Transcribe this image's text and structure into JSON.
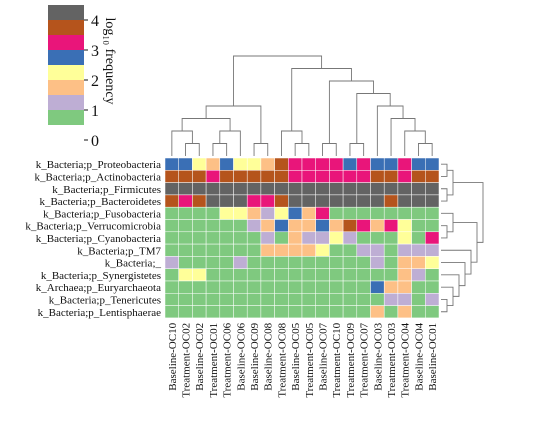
{
  "chart_data": {
    "type": "heatmap",
    "title": "",
    "value_label": "log₁₀ frequency",
    "color_scale": {
      "ticks": [
        "4",
        "3",
        "2",
        "1",
        "0"
      ],
      "bands": [
        {
          "min": 3.5,
          "max": 4.0,
          "color": "#636363"
        },
        {
          "min": 3.0,
          "max": 3.5,
          "color": "#b5541c"
        },
        {
          "min": 2.5,
          "max": 3.0,
          "color": "#e9157a"
        },
        {
          "min": 2.0,
          "max": 2.5,
          "color": "#3a6fb5"
        },
        {
          "min": 1.5,
          "max": 2.0,
          "color": "#ffff99"
        },
        {
          "min": 1.0,
          "max": 1.5,
          "color": "#fdc086"
        },
        {
          "min": 0.5,
          "max": 1.0,
          "color": "#beaed4"
        },
        {
          "min": 0.0,
          "max": 0.5,
          "color": "#7fc97f"
        }
      ]
    },
    "rows": [
      "k_Bacteria;p_Proteobacteria",
      "k_Bacteria;p_Actinobacteria",
      "k_Bacteria;p_Firmicutes",
      "k_Bacteria;p_Bacteroidetes",
      "k_Bacteria;p_Fusobacteria",
      "k_Bacteria;p_Verrucomicrobia",
      "k_Bacteria;p_Cyanobacteria",
      "k_Bacteria;p_TM7",
      "k_Bacteria;_",
      "k_Bacteria;p_Synergistetes",
      "k_Archaea;p_Euryarchaeota",
      "k_Bacteria;p_Tenericutes",
      "k_Bacteria;p_Lentisphaerae"
    ],
    "columns": [
      "Baseline-OC10",
      "Treatment-OC02",
      "Baseline-OC02",
      "Treatment-OC01",
      "Treatment-OC06",
      "Baseline-OC06",
      "Baseline-OC09",
      "Baseline-OC08",
      "Treatment-OC08",
      "Baseline-OC05",
      "Treatment-OC05",
      "Baseline-OC07",
      "Treatment-OC10",
      "Treatment-OC09",
      "Treatment-OC07",
      "Baseline-OC03",
      "Treatment-OC03",
      "Treatment-OC04",
      "Baseline-OC04",
      "Baseline-OC01"
    ],
    "values": [
      [
        2.3,
        2.3,
        1.8,
        1.3,
        2.3,
        1.8,
        1.8,
        1.3,
        3.3,
        2.8,
        2.8,
        2.8,
        2.8,
        2.3,
        2.8,
        2.3,
        2.3,
        2.8,
        2.3,
        2.3
      ],
      [
        3.3,
        3.3,
        3.3,
        2.8,
        3.3,
        3.3,
        3.3,
        3.3,
        3.3,
        2.8,
        2.8,
        2.8,
        2.8,
        2.8,
        2.8,
        3.3,
        3.3,
        2.8,
        3.3,
        3.3
      ],
      [
        3.8,
        3.8,
        3.8,
        3.8,
        3.8,
        3.8,
        3.8,
        3.8,
        3.8,
        3.8,
        3.8,
        3.8,
        3.8,
        3.8,
        3.8,
        3.8,
        3.8,
        3.8,
        3.8,
        3.8
      ],
      [
        3.3,
        2.8,
        3.3,
        3.8,
        3.8,
        3.8,
        2.8,
        2.8,
        3.3,
        3.8,
        3.8,
        3.8,
        3.8,
        3.8,
        3.8,
        3.8,
        3.3,
        3.8,
        3.8,
        3.8
      ],
      [
        0.3,
        0.3,
        0.3,
        0.3,
        1.8,
        1.8,
        1.3,
        0.8,
        1.8,
        2.3,
        1.3,
        2.8,
        0.3,
        0.3,
        0.3,
        0.3,
        0.3,
        0.3,
        0.3,
        0.3
      ],
      [
        0.3,
        0.3,
        0.3,
        0.3,
        0.3,
        0.3,
        0.8,
        1.3,
        2.3,
        1.3,
        1.3,
        2.3,
        1.3,
        3.3,
        2.8,
        1.3,
        2.8,
        1.8,
        0.3,
        0.3
      ],
      [
        0.3,
        0.3,
        0.3,
        0.3,
        0.3,
        0.3,
        0.3,
        0.8,
        0.3,
        1.3,
        0.8,
        0.8,
        1.8,
        0.8,
        0.3,
        0.3,
        0.3,
        1.8,
        0.3,
        2.8
      ],
      [
        0.3,
        0.3,
        0.3,
        0.3,
        0.3,
        0.3,
        0.3,
        1.3,
        1.3,
        1.3,
        1.3,
        1.8,
        0.3,
        0.3,
        0.8,
        0.8,
        0.3,
        0.8,
        0.8,
        0.8
      ],
      [
        0.8,
        0.3,
        0.3,
        0.3,
        0.3,
        0.8,
        0.3,
        0.3,
        0.3,
        0.3,
        0.3,
        0.3,
        0.3,
        0.3,
        0.3,
        0.8,
        0.3,
        1.3,
        1.3,
        1.8
      ],
      [
        0.3,
        1.8,
        1.8,
        0.3,
        0.3,
        0.3,
        0.3,
        0.3,
        0.3,
        0.3,
        0.3,
        0.3,
        0.3,
        0.3,
        0.3,
        0.3,
        0.3,
        1.3,
        0.8,
        0.3
      ],
      [
        0.3,
        0.3,
        0.3,
        0.3,
        0.3,
        0.3,
        0.3,
        0.3,
        0.3,
        0.3,
        0.3,
        0.3,
        0.3,
        0.3,
        0.3,
        2.3,
        1.3,
        1.3,
        0.3,
        0.3
      ],
      [
        0.3,
        0.3,
        0.3,
        0.3,
        0.3,
        0.3,
        0.3,
        0.3,
        0.3,
        0.3,
        0.3,
        0.3,
        0.3,
        0.3,
        0.3,
        0.3,
        0.8,
        0.8,
        0.3,
        0.8
      ],
      [
        0.3,
        0.3,
        0.3,
        0.3,
        0.3,
        0.3,
        0.3,
        0.3,
        0.3,
        0.3,
        0.3,
        0.3,
        0.3,
        0.3,
        0.3,
        1.3,
        0.3,
        1.3,
        0.3,
        0.3
      ]
    ],
    "dendrograms": [
      "columns",
      "rows"
    ]
  }
}
